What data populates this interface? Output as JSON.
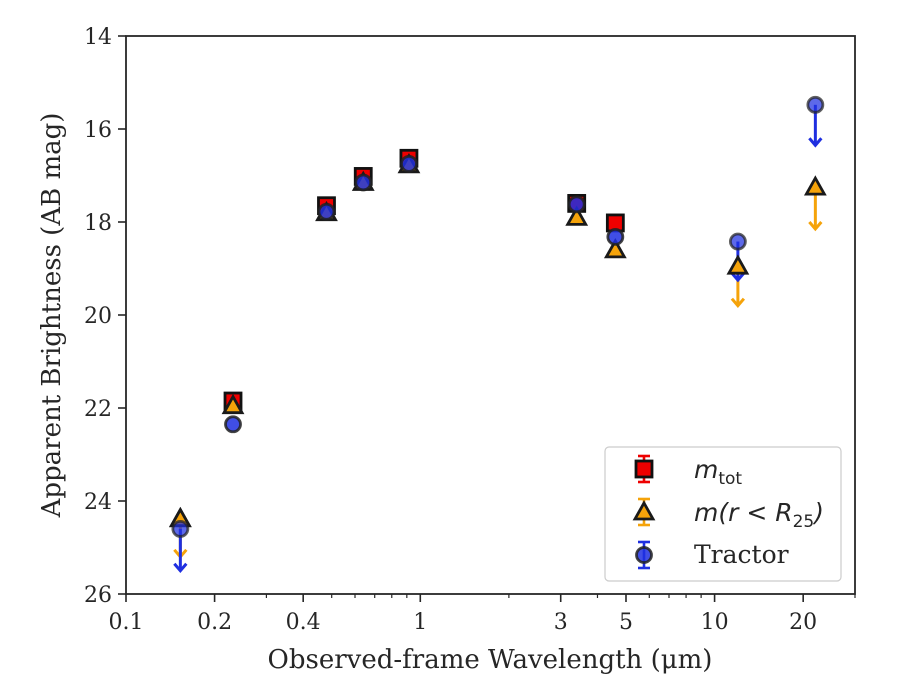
{
  "chart_data": {
    "type": "scatter",
    "xlabel": "Observed-frame Wavelength (μm)",
    "ylabel": "Apparent Brightness (AB mag)",
    "xscale": "log",
    "xlim": [
      0.1,
      30
    ],
    "ylim": [
      26,
      14
    ],
    "y_inverted": true,
    "xticks": [
      0.1,
      0.2,
      0.4,
      1,
      3,
      5,
      10,
      20
    ],
    "xtick_labels": [
      "0.1",
      "0.2",
      "0.4",
      "1",
      "3",
      "5",
      "10",
      "20"
    ],
    "yticks": [
      14,
      16,
      18,
      20,
      22,
      24,
      26
    ],
    "ytick_labels": [
      "14",
      "16",
      "18",
      "20",
      "22",
      "24",
      "26"
    ],
    "legend_position": "bottom-right",
    "series": [
      {
        "name_parts": [
          "m",
          "tot"
        ],
        "marker": "square",
        "color": "#ee0000",
        "points": [
          {
            "x": 0.231,
            "y": 21.85
          },
          {
            "x": 0.48,
            "y": 17.65
          },
          {
            "x": 0.64,
            "y": 17.02
          },
          {
            "x": 0.915,
            "y": 16.63
          },
          {
            "x": 3.4,
            "y": 17.6
          },
          {
            "x": 4.6,
            "y": 18.02
          }
        ],
        "upper_limits": []
      },
      {
        "name_parts": [
          "m(r < R",
          "25",
          ")"
        ],
        "marker": "triangle",
        "color": "#f5a30a",
        "points": [
          {
            "x": 0.153,
            "y": 24.38
          },
          {
            "x": 0.231,
            "y": 21.95
          },
          {
            "x": 0.48,
            "y": 17.8
          },
          {
            "x": 0.64,
            "y": 17.15
          },
          {
            "x": 0.915,
            "y": 16.77
          },
          {
            "x": 3.4,
            "y": 17.9
          },
          {
            "x": 4.6,
            "y": 18.6
          }
        ],
        "upper_limits": [
          {
            "x": 0.153,
            "y": 24.38,
            "to": 25.2
          },
          {
            "x": 12.0,
            "y": 18.95,
            "to": 19.8
          },
          {
            "x": 22.0,
            "y": 17.25,
            "to": 18.15
          }
        ]
      },
      {
        "name": "Tractor",
        "marker": "circle",
        "color": "#1f2fe0",
        "points": [
          {
            "x": 0.231,
            "y": 22.35
          },
          {
            "x": 0.48,
            "y": 17.78
          },
          {
            "x": 0.64,
            "y": 17.15
          },
          {
            "x": 0.915,
            "y": 16.75
          },
          {
            "x": 3.4,
            "y": 17.62
          },
          {
            "x": 4.6,
            "y": 18.32
          }
        ],
        "upper_limits": [
          {
            "x": 0.153,
            "y": 24.6,
            "to": 25.5
          },
          {
            "x": 12.0,
            "y": 18.42,
            "to": 19.25
          },
          {
            "x": 22.0,
            "y": 15.48,
            "to": 16.35
          }
        ]
      }
    ]
  }
}
